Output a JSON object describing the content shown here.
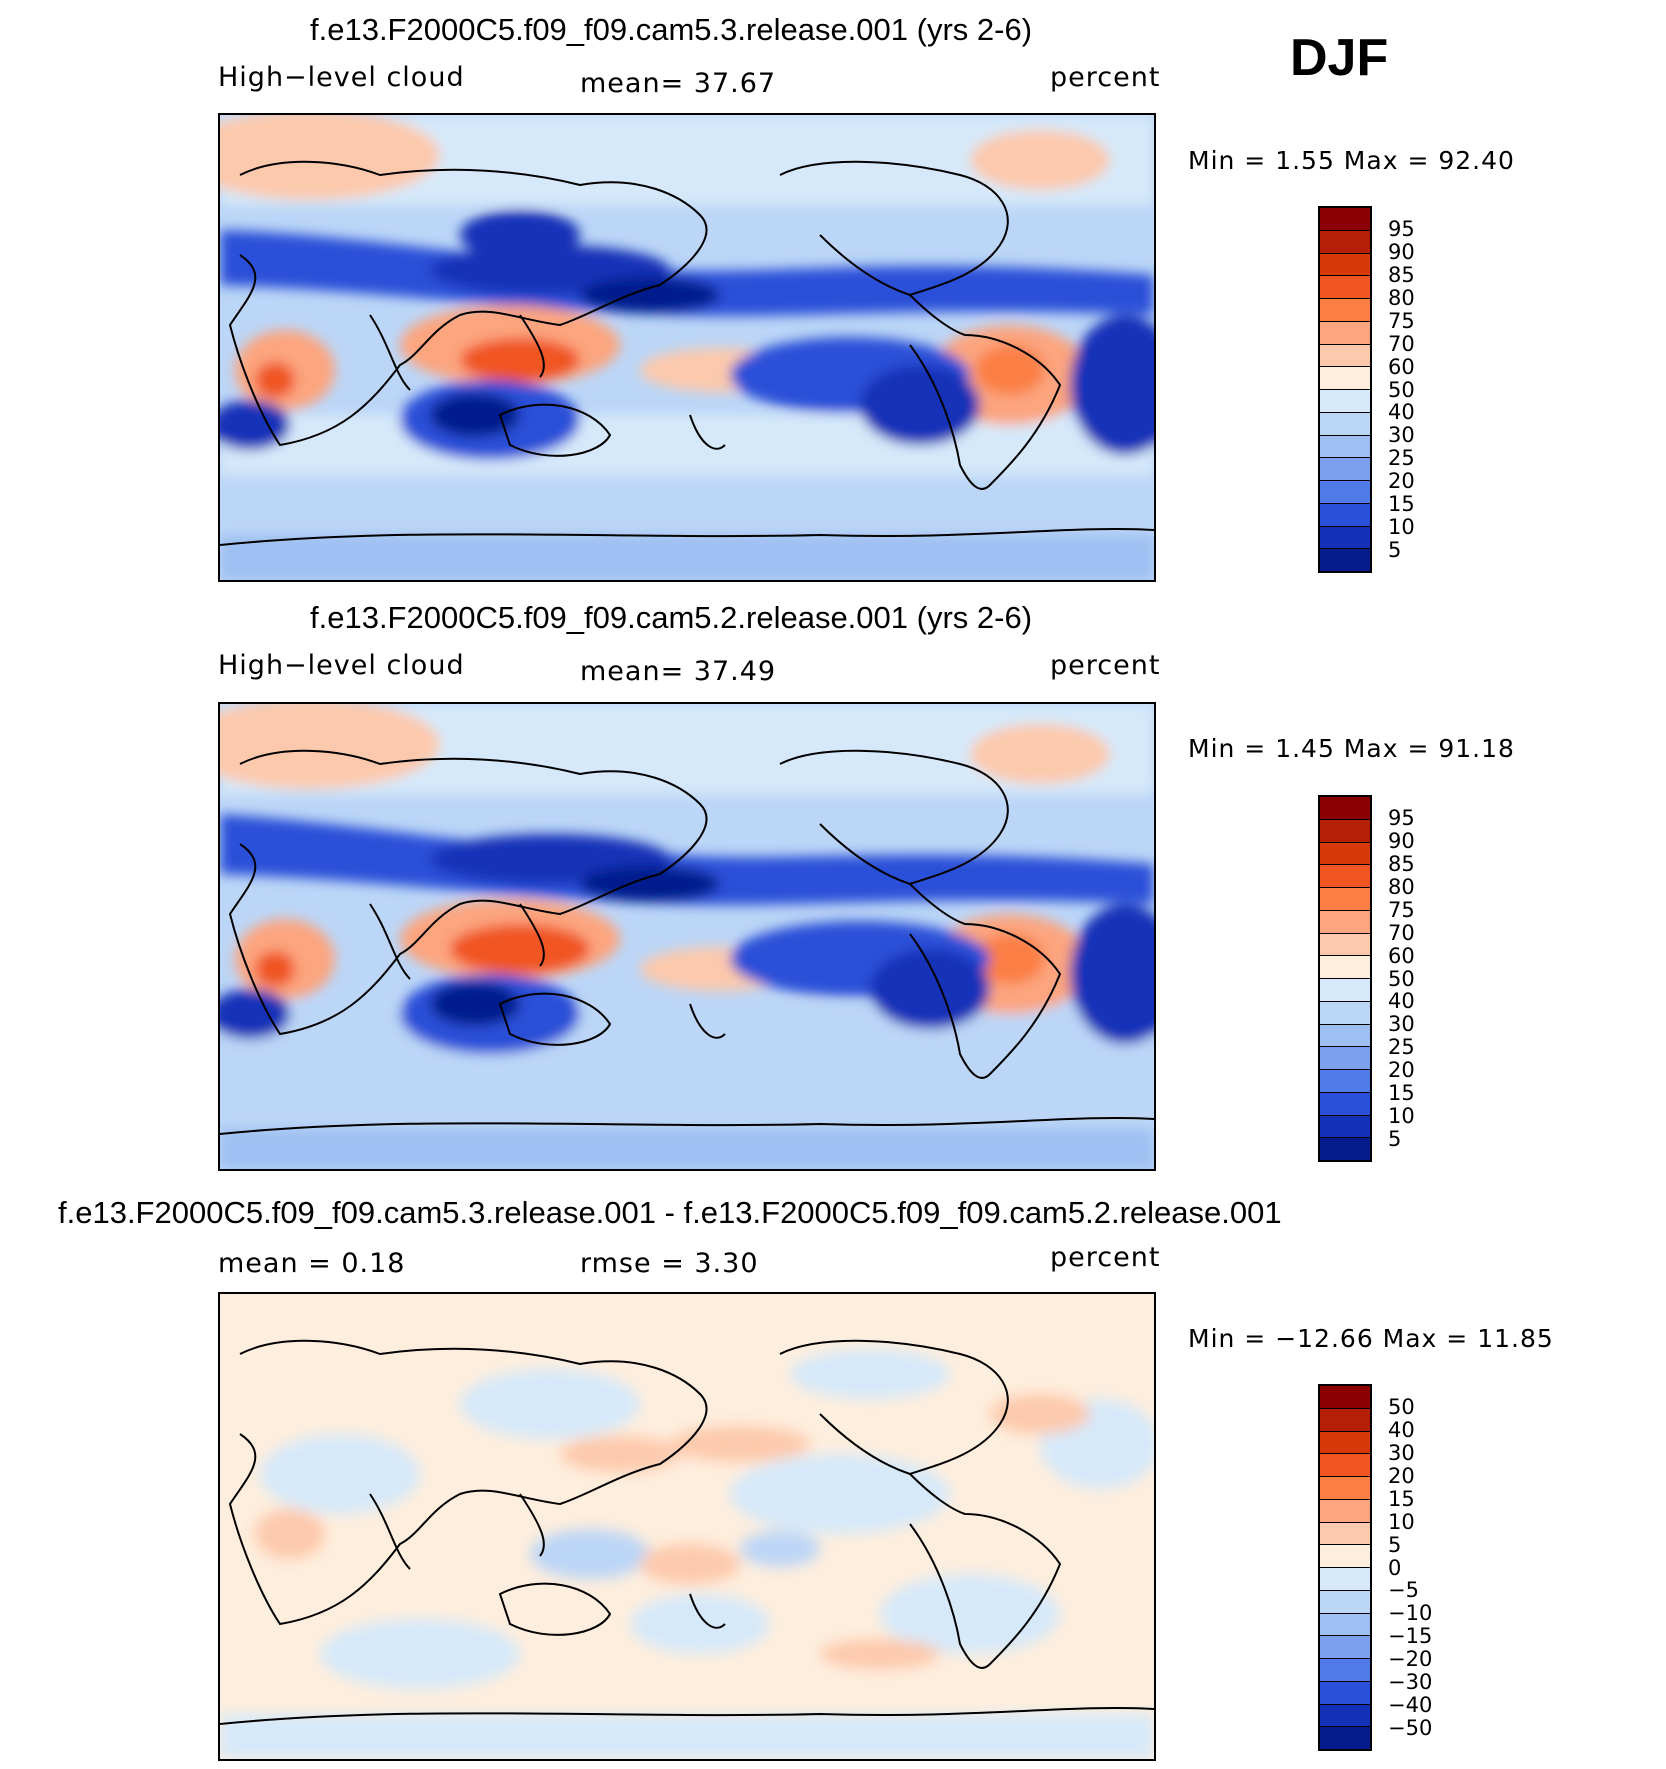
{
  "season": "DJF",
  "units": "percent",
  "panels": [
    {
      "title": "f.e13.F2000C5.f09_f09.cam5.3.release.001 (yrs 2-6)",
      "left_label": "High−level cloud",
      "stat_text": "mean=   37.67",
      "units": "percent",
      "minmax": "Min =     1.55  Max =    92.40",
      "colorbar": {
        "labels": [
          "95",
          "90",
          "85",
          "80",
          "75",
          "70",
          "60",
          "50",
          "40",
          "30",
          "25",
          "20",
          "15",
          "10",
          "5"
        ],
        "colors": [
          "#8b0000",
          "#b51f05",
          "#d8390a",
          "#f05522",
          "#fb7f45",
          "#fca57f",
          "#fdc9ac",
          "#feeedd",
          "#d6e9fa",
          "#bcd6f7",
          "#9ebff2",
          "#7aa0ee",
          "#4f7ae8",
          "#2a4fd8",
          "#1230b8",
          "#051c8c"
        ]
      }
    },
    {
      "title": "f.e13.F2000C5.f09_f09.cam5.2.release.001 (yrs 2-6)",
      "left_label": "High−level cloud",
      "stat_text": "mean=   37.49",
      "units": "percent",
      "minmax": "Min =     1.45  Max =    91.18",
      "colorbar": {
        "labels": [
          "95",
          "90",
          "85",
          "80",
          "75",
          "70",
          "60",
          "50",
          "40",
          "30",
          "25",
          "20",
          "15",
          "10",
          "5"
        ],
        "colors": [
          "#8b0000",
          "#b51f05",
          "#d8390a",
          "#f05522",
          "#fb7f45",
          "#fca57f",
          "#fdc9ac",
          "#feeedd",
          "#d6e9fa",
          "#bcd6f7",
          "#9ebff2",
          "#7aa0ee",
          "#4f7ae8",
          "#2a4fd8",
          "#1230b8",
          "#051c8c"
        ]
      }
    },
    {
      "title": "f.e13.F2000C5.f09_f09.cam5.3.release.001 - f.e13.F2000C5.f09_f09.cam5.2.release.001",
      "left_label": "mean =     0.18",
      "stat_text": "rmse =     3.30",
      "units": "percent",
      "minmax": "Min = −12.66  Max =    11.85",
      "colorbar": {
        "labels": [
          "50",
          "40",
          "30",
          "20",
          "15",
          "10",
          "5",
          "0",
          "−5",
          "−10",
          "−15",
          "−20",
          "−30",
          "−40",
          "−50"
        ],
        "colors": [
          "#8b0000",
          "#b51f05",
          "#d8390a",
          "#f05522",
          "#fb7f45",
          "#fca57f",
          "#fdc9ac",
          "#feeedd",
          "#d6e9fa",
          "#bcd6f7",
          "#9ebff2",
          "#7aa0ee",
          "#4f7ae8",
          "#2a4fd8",
          "#1230b8",
          "#051c8c"
        ]
      }
    }
  ]
}
